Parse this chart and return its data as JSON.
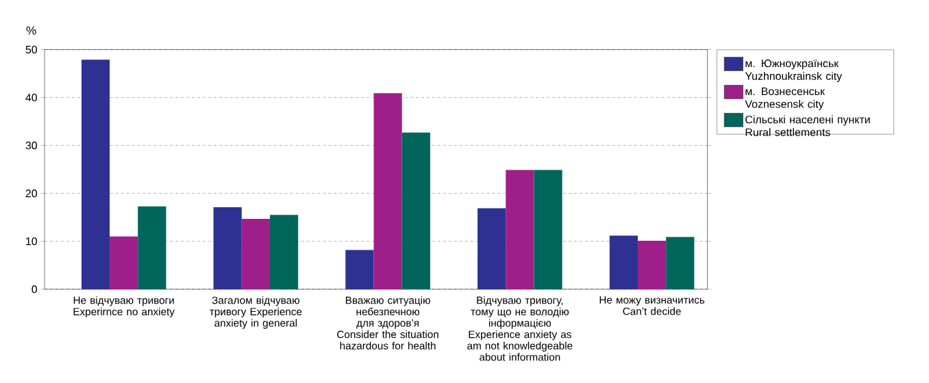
{
  "chart_data": {
    "type": "bar",
    "ylabel": "%",
    "categories": [
      "Не відчуваю тривоги Experirnce no anxiety",
      "Загалом відчуваю тривогу Experience anxiety in general",
      "Вважаю ситуацію небезпечною для здоров’я Consider the situation hazardous for health",
      "Відчуваю тривогу, тому що не володію інформацією Experience anxiety as am not knowledgeable about information",
      "Не можу визначитись Can’t decide"
    ],
    "series": [
      {
        "name": "м. Южноукраїнськ Yuzhnoukrainsk city",
        "color": "#2e3192",
        "values": [
          47.9,
          17.1,
          8.2,
          16.9,
          11.2
        ]
      },
      {
        "name": "м. Вознесенськ Voznesensk city",
        "color": "#9e1f89",
        "values": [
          11.0,
          14.7,
          40.9,
          24.9,
          10.1
        ]
      },
      {
        "name": "Сільські населені пункти Rural settlements",
        "color": "#00665c",
        "values": [
          17.3,
          15.5,
          32.7,
          24.9,
          10.9
        ]
      }
    ],
    "ylim": [
      0,
      50
    ],
    "yticks": [
      0,
      10,
      20,
      30,
      40,
      50
    ],
    "grid": "y",
    "legend": "right"
  }
}
